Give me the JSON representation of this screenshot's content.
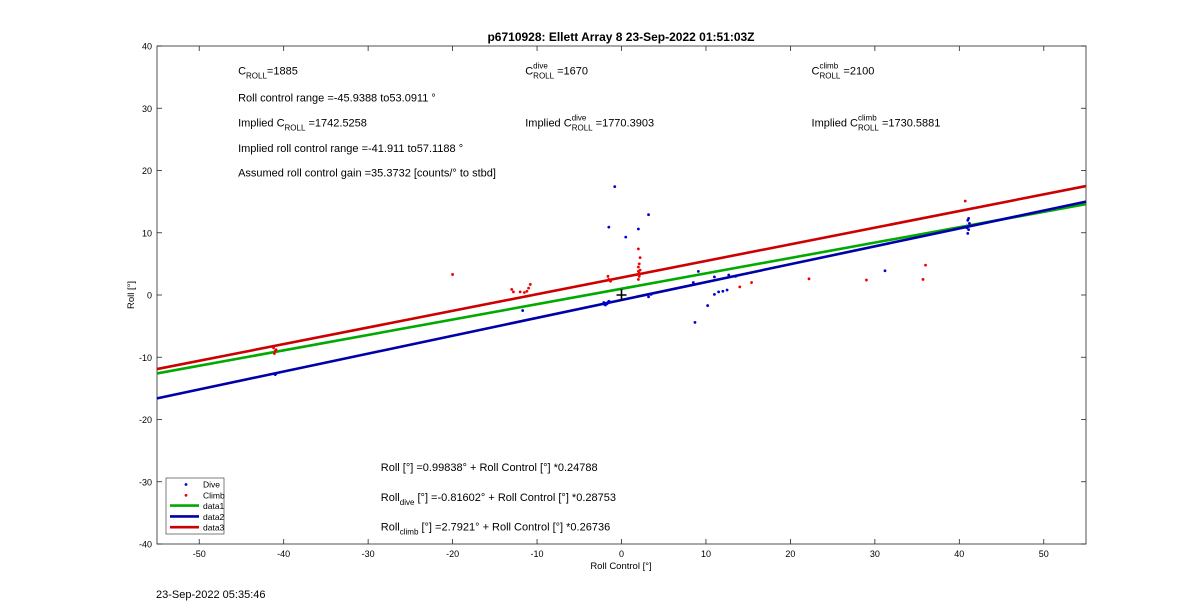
{
  "figure": {
    "footer_timestamp": "23-Sep-2022 05:35:46"
  },
  "chart_data": {
    "type": "scatter",
    "title": "p6710928: Ellett Array 8 23-Sep-2022 01:51:03Z",
    "xlabel": "Roll Control [°]",
    "ylabel": "Roll [°]",
    "xlim": [
      -55,
      55
    ],
    "ylim": [
      -40,
      40
    ],
    "xticks": [
      -50,
      -40,
      -30,
      -20,
      -10,
      0,
      10,
      20,
      30,
      40,
      50
    ],
    "yticks": [
      -40,
      -30,
      -20,
      -10,
      0,
      10,
      20,
      30,
      40
    ],
    "grid": false,
    "legend_position": "bottom-left",
    "series": [
      {
        "name": "Dive",
        "kind": "points",
        "color": "#0000cc",
        "points": [
          [
            -41,
            -12.8
          ],
          [
            -40.9,
            -12.6
          ],
          [
            -2,
            -1.5
          ],
          [
            -1.8,
            -1.3
          ],
          [
            -1.6,
            -1.2
          ],
          [
            -1.4,
            -1.1
          ],
          [
            -1.9,
            -1.6
          ],
          [
            -1.7,
            -1.4
          ],
          [
            -1.5,
            -1.0
          ],
          [
            -2.1,
            -1.2
          ],
          [
            -0.8,
            17.4
          ],
          [
            -1.5,
            10.9
          ],
          [
            0.5,
            9.3
          ],
          [
            2,
            10.6
          ],
          [
            3.2,
            12.9
          ],
          [
            3.2,
            -0.3
          ],
          [
            3.5,
            0.1
          ],
          [
            -11.7,
            -2.5
          ],
          [
            8.7,
            -4.4
          ],
          [
            8.5,
            2.0
          ],
          [
            9.1,
            3.8
          ],
          [
            10.2,
            -1.7
          ],
          [
            11,
            2.9
          ],
          [
            11,
            0.1
          ],
          [
            11.5,
            0.5
          ],
          [
            12,
            0.6
          ],
          [
            12.5,
            0.8
          ],
          [
            12.7,
            3.2
          ],
          [
            13.5,
            3.0
          ],
          [
            31.2,
            3.9
          ],
          [
            41,
            9.9
          ],
          [
            41.1,
            10.5
          ],
          [
            41,
            11.0
          ],
          [
            41.2,
            11.5
          ],
          [
            41,
            12.0
          ],
          [
            41.1,
            12.3
          ],
          [
            40.9,
            10.8
          ]
        ]
      },
      {
        "name": "Climb",
        "kind": "points",
        "color": "#ee0000",
        "points": [
          [
            -41.2,
            -8.5
          ],
          [
            -41,
            -9.0
          ],
          [
            -41.1,
            -9.4
          ],
          [
            -40.9,
            -8.8
          ],
          [
            -20,
            3.3
          ],
          [
            -13,
            0.9
          ],
          [
            -12.8,
            0.5
          ],
          [
            -12,
            0.5
          ],
          [
            -11.5,
            0.4
          ],
          [
            -11.2,
            0.6
          ],
          [
            -11,
            1.1
          ],
          [
            -10.8,
            1.7
          ],
          [
            -1.5,
            2.5
          ],
          [
            -1.3,
            2.2
          ],
          [
            -1.6,
            3.0
          ],
          [
            2,
            2.5
          ],
          [
            2.1,
            3.0
          ],
          [
            2.1,
            3.5
          ],
          [
            2.2,
            4.0
          ],
          [
            2,
            4.5
          ],
          [
            2.1,
            5.0
          ],
          [
            2.2,
            6.0
          ],
          [
            2,
            7.4
          ],
          [
            2.1,
            3.2
          ],
          [
            2.0,
            3.8
          ],
          [
            14,
            1.3
          ],
          [
            15.4,
            2.0
          ],
          [
            22.2,
            2.6
          ],
          [
            29,
            2.4
          ],
          [
            35.7,
            2.5
          ],
          [
            36,
            4.8
          ],
          [
            40.7,
            15.1
          ]
        ]
      },
      {
        "name": "data1",
        "kind": "line",
        "color": "#00aa00",
        "x": [
          -55,
          55
        ],
        "y": [
          -12.6,
          14.6
        ]
      },
      {
        "name": "data2",
        "kind": "line",
        "color": "#0000aa",
        "x": [
          -55,
          55
        ],
        "y": [
          -16.6,
          15.0
        ]
      },
      {
        "name": "data3",
        "kind": "line",
        "color": "#cc0000",
        "x": [
          -55,
          55
        ],
        "y": [
          -11.9,
          17.5
        ]
      }
    ],
    "marker": {
      "x": 0,
      "y": 0,
      "symbol": "+"
    },
    "annotations": [
      {
        "id": "a1",
        "base": "C",
        "sub": "ROLL",
        "rest": "=1885",
        "x": -45.4,
        "y": 35.4
      },
      {
        "id": "a2",
        "base": "Roll control range =-45.9388 to53.0911 °",
        "x": -45.4,
        "y": 31.1
      },
      {
        "id": "a3",
        "base": "Implied C",
        "sub": "ROLL",
        "rest": " =1742.5258",
        "x": -45.4,
        "y": 27.1
      },
      {
        "id": "a4",
        "base": "Implied roll control range =-41.911 to57.1188 °",
        "x": -45.4,
        "y": 23.0
      },
      {
        "id": "a5",
        "base": "Assumed roll control gain =35.3732 [counts/° to stbd]",
        "x": -45.4,
        "y": 19.0
      },
      {
        "id": "a6",
        "base": "C",
        "sup": "dive",
        "sub": "ROLL",
        "rest": " =1670",
        "x": -11.4,
        "y": 35.4
      },
      {
        "id": "a7",
        "base": "Implied C",
        "sup": "dive",
        "sub": "ROLL",
        "rest": " =1770.3903",
        "x": -11.4,
        "y": 27.1
      },
      {
        "id": "a8",
        "base": "C",
        "sup": "climb",
        "sub": "ROLL",
        "rest": " =2100",
        "x": 22.5,
        "y": 35.4
      },
      {
        "id": "a9",
        "base": "Implied C",
        "sup": "climb",
        "sub": "ROLL",
        "rest": " =1730.5881",
        "x": 22.5,
        "y": 27.1
      },
      {
        "id": "a10",
        "base": "Roll [°] =0.99838° + Roll Control [°] *0.24788",
        "x": -28.5,
        "y": -28.3
      },
      {
        "id": "a11",
        "base": "Roll",
        "sub": "dive",
        "rest": " [°] =-0.81602° + Roll Control [°] *0.28753",
        "x": -28.5,
        "y": -33.1
      },
      {
        "id": "a12",
        "base": "Roll",
        "sub": "climb",
        "rest": " [°] =2.7921° + Roll Control [°] *0.26736",
        "x": -28.5,
        "y": -37.8
      }
    ]
  }
}
